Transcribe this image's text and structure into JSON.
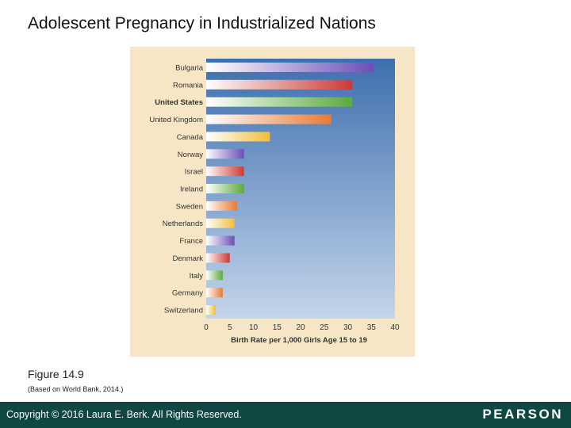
{
  "slide": {
    "title": "Adolescent Pregnancy in Industrialized Nations",
    "figure_label": "Figure 14.9",
    "figure_source": "(Based on World Bank, 2014.)"
  },
  "footer": {
    "copyright": "Copyright © 2016 Laura E. Berk. All Rights Reserved.",
    "brand": "PEARSON"
  },
  "colors": {
    "panel_bg": "#f6e6c6",
    "plot_top": "#3d6fae",
    "plot_bottom": "#c4d5ea",
    "footer_bg": "#0f4742",
    "label_text": "#333333",
    "bar_palette": [
      "#6a4fb8",
      "#cc3a33",
      "#5caa3c",
      "#e87a36",
      "#f0be3a"
    ],
    "bar_highlight": "#ffffff"
  },
  "chart_data": {
    "type": "bar",
    "orientation": "horizontal",
    "title": "",
    "xlabel": "Birth Rate per 1,000 Girls Age 15 to 19",
    "ylabel": "",
    "xlim": [
      0,
      40
    ],
    "xticks": [
      0,
      5,
      10,
      15,
      20,
      25,
      30,
      35,
      40
    ],
    "grid": false,
    "emphasized_category": "United States",
    "categories": [
      "Bulgaria",
      "Romania",
      "United States",
      "United Kingdom",
      "Canada",
      "Norway",
      "Israel",
      "Ireland",
      "Sweden",
      "Netherlands",
      "France",
      "Denmark",
      "Italy",
      "Germany",
      "Switzerland"
    ],
    "values": [
      35.5,
      31,
      31,
      26.5,
      13.5,
      8,
      8,
      8,
      6.5,
      6,
      6,
      5,
      3.5,
      3.5,
      2
    ],
    "bar_colors": [
      "#6a4fb8",
      "#cc3a33",
      "#5caa3c",
      "#e87a36",
      "#f0be3a",
      "#6a4fb8",
      "#cc3a33",
      "#5caa3c",
      "#e87a36",
      "#f0be3a",
      "#6a4fb8",
      "#cc3a33",
      "#5caa3c",
      "#e87a36",
      "#f0be3a"
    ]
  }
}
